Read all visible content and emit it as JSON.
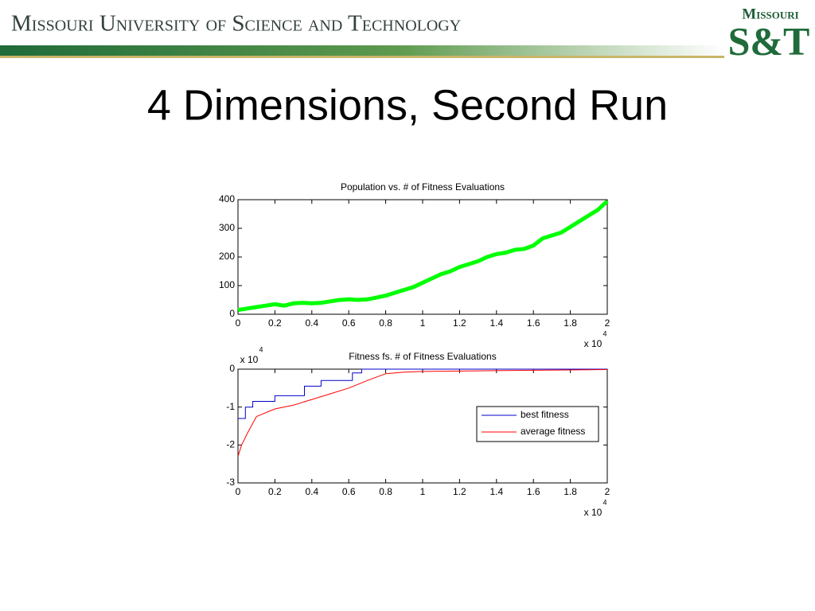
{
  "header": {
    "institution": "Missouri University of Science and Technology",
    "logo_top": "Missouri",
    "logo_main": "S&T"
  },
  "slide_title": "4 Dimensions, Second Run",
  "chart_data": [
    {
      "type": "line",
      "title": "Population vs. # of Fitness Evaluations",
      "x": [
        0,
        0.05,
        0.1,
        0.15,
        0.2,
        0.25,
        0.3,
        0.35,
        0.4,
        0.45,
        0.5,
        0.55,
        0.6,
        0.65,
        0.7,
        0.75,
        0.8,
        0.85,
        0.9,
        0.95,
        1,
        1.05,
        1.1,
        1.15,
        1.2,
        1.25,
        1.3,
        1.35,
        1.4,
        1.45,
        1.5,
        1.55,
        1.6,
        1.65,
        1.7,
        1.75,
        1.8,
        1.85,
        1.9,
        1.95,
        2
      ],
      "series": [
        {
          "color": "#00ff00",
          "values": [
            15,
            20,
            25,
            30,
            35,
            30,
            38,
            40,
            38,
            40,
            45,
            50,
            52,
            50,
            52,
            58,
            65,
            75,
            85,
            95,
            110,
            125,
            140,
            150,
            165,
            175,
            185,
            200,
            210,
            215,
            225,
            228,
            240,
            265,
            275,
            285,
            305,
            325,
            345,
            365,
            395
          ]
        }
      ],
      "xlim": [
        0,
        2
      ],
      "xticks": [
        0,
        0.2,
        0.4,
        0.6,
        0.8,
        1,
        1.2,
        1.4,
        1.6,
        1.8,
        2
      ],
      "ylim": [
        0,
        400
      ],
      "yticks": [
        0,
        100,
        200,
        300,
        400
      ],
      "x_offset_text": {
        "base": "x 10",
        "exponent": "4"
      }
    },
    {
      "type": "line",
      "title": "Fitness fs. # of Fitness Evaluations",
      "series": [
        {
          "name": "best fitness",
          "color": "#0000cc",
          "x": [
            0,
            0.04,
            0.04,
            0.08,
            0.08,
            0.2,
            0.2,
            0.36,
            0.36,
            0.45,
            0.45,
            0.62,
            0.62,
            0.67,
            0.67,
            2
          ],
          "values": [
            -1.3,
            -1.3,
            -1.0,
            -1.0,
            -0.85,
            -0.85,
            -0.7,
            -0.7,
            -0.45,
            -0.45,
            -0.3,
            -0.3,
            -0.1,
            -0.1,
            0,
            0
          ]
        },
        {
          "name": "average fitness",
          "color": "#ff0000",
          "x": [
            0,
            0.02,
            0.05,
            0.1,
            0.2,
            0.3,
            0.4,
            0.5,
            0.6,
            0.7,
            0.8,
            0.9,
            1,
            1.2,
            1.4,
            1.6,
            1.8,
            2
          ],
          "values": [
            -2.3,
            -2.0,
            -1.7,
            -1.25,
            -1.05,
            -0.95,
            -0.8,
            -0.65,
            -0.5,
            -0.3,
            -0.12,
            -0.08,
            -0.06,
            -0.05,
            -0.04,
            -0.03,
            -0.02,
            -0.01
          ]
        }
      ],
      "xlim": [
        0,
        2
      ],
      "xticks": [
        0,
        0.2,
        0.4,
        0.6,
        0.8,
        1,
        1.2,
        1.4,
        1.6,
        1.8,
        2
      ],
      "ylim": [
        -3,
        0
      ],
      "yticks": [
        -3,
        -2,
        -1,
        0
      ],
      "legend": "right",
      "x_offset_text": {
        "base": "x 10",
        "exponent": "4"
      },
      "y_offset_text": {
        "base": "x 10",
        "exponent": "4"
      }
    }
  ]
}
